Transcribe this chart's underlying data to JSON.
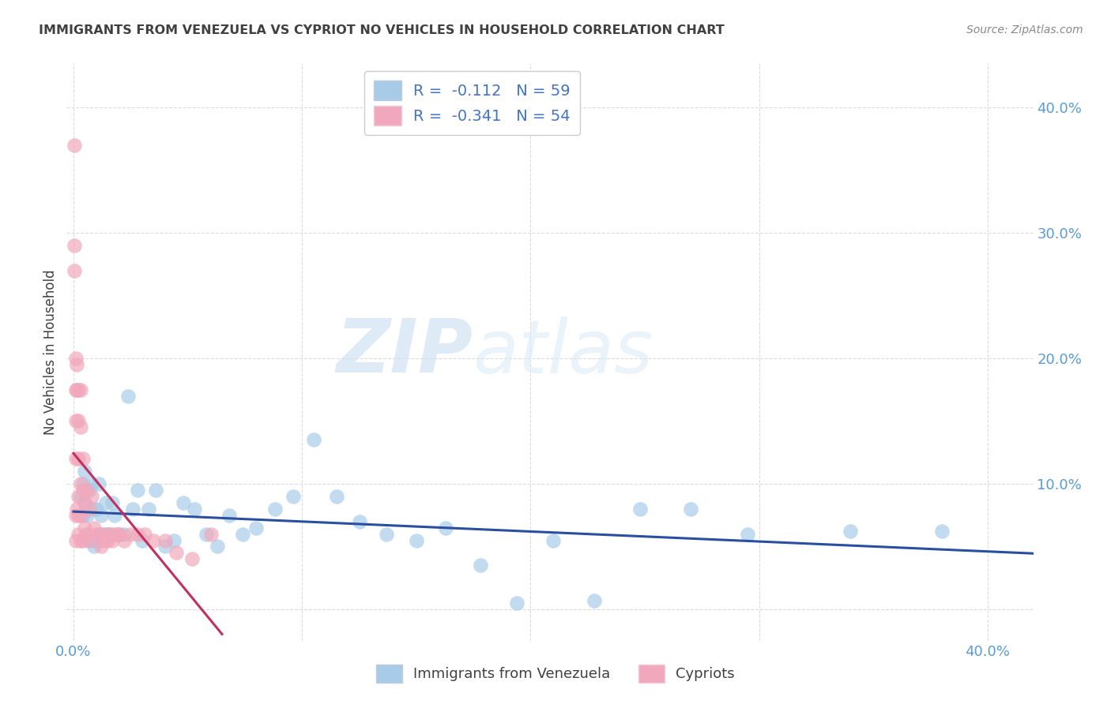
{
  "title": "IMMIGRANTS FROM VENEZUELA VS CYPRIOT NO VEHICLES IN HOUSEHOLD CORRELATION CHART",
  "source": "Source: ZipAtlas.com",
  "ylabel": "No Vehicles in Household",
  "y_ticks": [
    0.0,
    0.1,
    0.2,
    0.3,
    0.4
  ],
  "x_ticks": [
    0.0,
    0.1,
    0.2,
    0.3,
    0.4
  ],
  "xlim": [
    -0.003,
    0.42
  ],
  "ylim": [
    -0.025,
    0.435
  ],
  "color_blue": "#A8CCE8",
  "color_pink": "#F2A8BC",
  "line_color_blue": "#2B4FA0",
  "line_color_pink": "#C03060",
  "background_color": "#FFFFFF",
  "watermark_zip": "ZIP",
  "watermark_atlas": "atlas",
  "grid_color": "#CCCCCC",
  "tick_color": "#5B9BD5",
  "title_color": "#404040",
  "source_color": "#888888",
  "legend_label_color": "#4472C4",
  "legend_r1_text": "R =  -0.112   N = 59",
  "legend_r2_text": "R =  -0.341   N = 54",
  "bottom_legend_labels": [
    "Immigrants from Venezuela",
    "Cypriots"
  ],
  "blue_scatter_x": [
    0.003,
    0.004,
    0.004,
    0.005,
    0.005,
    0.006,
    0.006,
    0.007,
    0.007,
    0.008,
    0.008,
    0.009,
    0.009,
    0.01,
    0.01,
    0.011,
    0.011,
    0.012,
    0.012,
    0.013,
    0.014,
    0.015,
    0.016,
    0.017,
    0.018,
    0.02,
    0.022,
    0.024,
    0.026,
    0.028,
    0.03,
    0.033,
    0.036,
    0.04,
    0.044,
    0.048,
    0.053,
    0.058,
    0.063,
    0.068,
    0.074,
    0.08,
    0.088,
    0.096,
    0.105,
    0.115,
    0.125,
    0.137,
    0.15,
    0.163,
    0.178,
    0.194,
    0.21,
    0.228,
    0.248,
    0.27,
    0.295,
    0.34,
    0.38
  ],
  "blue_scatter_y": [
    0.09,
    0.075,
    0.1,
    0.085,
    0.11,
    0.06,
    0.075,
    0.055,
    0.095,
    0.055,
    0.1,
    0.08,
    0.05,
    0.08,
    0.055,
    0.1,
    0.06,
    0.075,
    0.06,
    0.06,
    0.085,
    0.06,
    0.06,
    0.085,
    0.075,
    0.06,
    0.06,
    0.17,
    0.08,
    0.095,
    0.055,
    0.08,
    0.095,
    0.05,
    0.055,
    0.085,
    0.08,
    0.06,
    0.05,
    0.075,
    0.06,
    0.065,
    0.08,
    0.09,
    0.135,
    0.09,
    0.07,
    0.06,
    0.055,
    0.065,
    0.035,
    0.005,
    0.055,
    0.007,
    0.08,
    0.08,
    0.06,
    0.062,
    0.062
  ],
  "pink_scatter_x": [
    0.0005,
    0.0005,
    0.0005,
    0.001,
    0.001,
    0.001,
    0.001,
    0.001,
    0.001,
    0.0015,
    0.0015,
    0.0015,
    0.002,
    0.002,
    0.002,
    0.002,
    0.002,
    0.002,
    0.003,
    0.003,
    0.003,
    0.003,
    0.003,
    0.004,
    0.004,
    0.004,
    0.005,
    0.005,
    0.006,
    0.006,
    0.007,
    0.007,
    0.008,
    0.009,
    0.01,
    0.011,
    0.012,
    0.013,
    0.014,
    0.015,
    0.016,
    0.017,
    0.018,
    0.019,
    0.02,
    0.022,
    0.025,
    0.028,
    0.031,
    0.035,
    0.04,
    0.045,
    0.052,
    0.06
  ],
  "pink_scatter_y": [
    0.37,
    0.29,
    0.27,
    0.2,
    0.175,
    0.15,
    0.12,
    0.075,
    0.055,
    0.195,
    0.175,
    0.08,
    0.175,
    0.15,
    0.12,
    0.09,
    0.075,
    0.06,
    0.175,
    0.145,
    0.1,
    0.075,
    0.055,
    0.12,
    0.095,
    0.055,
    0.085,
    0.065,
    0.095,
    0.06,
    0.08,
    0.055,
    0.09,
    0.065,
    0.06,
    0.06,
    0.05,
    0.055,
    0.06,
    0.055,
    0.06,
    0.055,
    0.06,
    0.06,
    0.06,
    0.055,
    0.06,
    0.06,
    0.06,
    0.055,
    0.055,
    0.045,
    0.04,
    0.06
  ]
}
